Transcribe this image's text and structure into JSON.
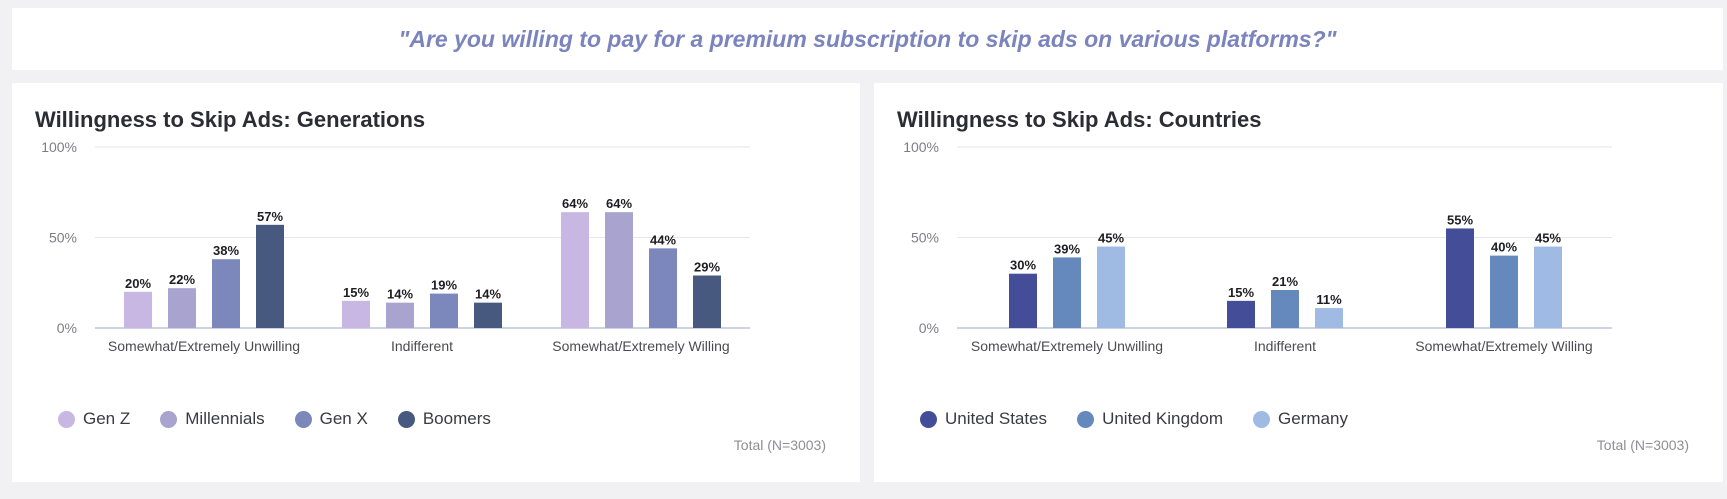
{
  "banner": {
    "question": "\"Are you willing to pay for a premium subscription to skip ads on various platforms?\""
  },
  "chart_data": [
    {
      "type": "bar",
      "title": "Willingness to Skip Ads: Generations",
      "categories": [
        "Somewhat/Extremely Unwilling",
        "Indifferent",
        "Somewhat/Extremely Willing"
      ],
      "series": [
        {
          "name": "Gen Z",
          "color": "#c8b7e2",
          "values": [
            20,
            15,
            64
          ]
        },
        {
          "name": "Millennials",
          "color": "#a8a3cf",
          "values": [
            22,
            14,
            64
          ]
        },
        {
          "name": "Gen X",
          "color": "#7c88bb",
          "values": [
            38,
            19,
            44
          ]
        },
        {
          "name": "Boomers",
          "color": "#47597f",
          "values": [
            57,
            14,
            29
          ]
        }
      ],
      "yticks": [
        "100%",
        "50%",
        "0%"
      ],
      "ylim": [
        0,
        100
      ],
      "xlabel": "",
      "ylabel": "",
      "legend": "bottom-left",
      "total": "Total (N=3003)"
    },
    {
      "type": "bar",
      "title": "Willingness to Skip Ads: Countries",
      "categories": [
        "Somewhat/Extremely Unwilling",
        "Indifferent",
        "Somewhat/Extremely Willing"
      ],
      "series": [
        {
          "name": "United States",
          "color": "#444e98",
          "values": [
            30,
            15,
            55
          ]
        },
        {
          "name": "United Kingdom",
          "color": "#6689bd",
          "values": [
            39,
            21,
            40
          ]
        },
        {
          "name": "Germany",
          "color": "#9fbbe3",
          "values": [
            45,
            11,
            45
          ]
        }
      ],
      "yticks": [
        "100%",
        "50%",
        "0%"
      ],
      "ylim": [
        0,
        100
      ],
      "xlabel": "",
      "ylabel": "",
      "legend": "bottom-left",
      "total": "Total (N=3003)"
    }
  ]
}
